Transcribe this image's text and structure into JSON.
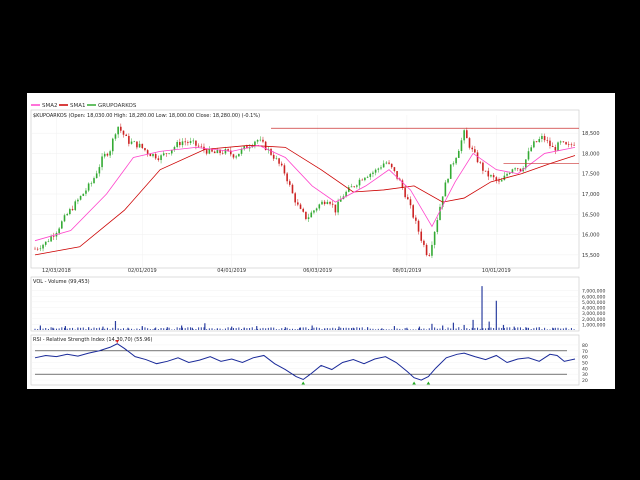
{
  "legend": {
    "items": [
      {
        "label": "SMA2",
        "color": "#ff44cc"
      },
      {
        "label": "SMA1",
        "color": "#cc0000"
      },
      {
        "label": "GRUPOARKOS",
        "color": "#33aa33"
      }
    ]
  },
  "chart_data": [
    {
      "type": "candlestick",
      "title": "$KUPOARKOS (Open: 18,030.00 High: 18,280.00 Low: 18,000.00 Close: 18,280.00) (-0.1%)",
      "x_tick_labels": [
        "12/03/2018",
        "02/01/2019",
        "04/01/2019",
        "06/03/2019",
        "08/01/2019",
        "10/01/2019"
      ],
      "y_tick_labels": [
        "18,500",
        "18,000",
        "17,500",
        "17,000",
        "16,500",
        "16,000",
        "15,500"
      ],
      "ylim": [
        15300,
        18750
      ],
      "last_price": {
        "open": 18030,
        "high": 18280,
        "low": 18000,
        "close": 18280,
        "change_pct": -0.1
      },
      "close_points": [
        [
          0,
          15650
        ],
        [
          6,
          15800
        ],
        [
          12,
          16100
        ],
        [
          18,
          16500
        ],
        [
          25,
          16900
        ],
        [
          32,
          17300
        ],
        [
          38,
          17900
        ],
        [
          42,
          18100
        ],
        [
          46,
          18700
        ],
        [
          52,
          18300
        ],
        [
          58,
          18200
        ],
        [
          64,
          18000
        ],
        [
          70,
          17900
        ],
        [
          76,
          18100
        ],
        [
          82,
          18300
        ],
        [
          88,
          18250
        ],
        [
          94,
          18100
        ],
        [
          100,
          18000
        ],
        [
          106,
          18050
        ],
        [
          112,
          17950
        ],
        [
          118,
          18150
        ],
        [
          124,
          18350
        ],
        [
          128,
          18200
        ],
        [
          134,
          17900
        ],
        [
          140,
          17500
        ],
        [
          144,
          17000
        ],
        [
          148,
          16600
        ],
        [
          152,
          16400
        ],
        [
          158,
          16700
        ],
        [
          164,
          16900
        ],
        [
          168,
          16600
        ],
        [
          172,
          16950
        ],
        [
          178,
          17200
        ],
        [
          184,
          17450
        ],
        [
          190,
          17550
        ],
        [
          196,
          17800
        ],
        [
          200,
          17600
        ],
        [
          204,
          17300
        ],
        [
          208,
          16900
        ],
        [
          212,
          16400
        ],
        [
          216,
          15900
        ],
        [
          220,
          15450
        ],
        [
          224,
          16200
        ],
        [
          228,
          17000
        ],
        [
          232,
          17600
        ],
        [
          236,
          18000
        ],
        [
          240,
          18500
        ],
        [
          244,
          18100
        ],
        [
          248,
          17800
        ],
        [
          252,
          17500
        ],
        [
          256,
          17400
        ],
        [
          260,
          17250
        ],
        [
          264,
          17500
        ],
        [
          268,
          17700
        ],
        [
          272,
          17600
        ],
        [
          278,
          18200
        ],
        [
          284,
          18400
        ],
        [
          290,
          18100
        ],
        [
          294,
          18250
        ],
        [
          298,
          18150
        ],
        [
          302,
          18280
        ]
      ],
      "sma_short_points": [
        [
          0,
          15850
        ],
        [
          20,
          16100
        ],
        [
          40,
          17000
        ],
        [
          55,
          17900
        ],
        [
          70,
          18050
        ],
        [
          90,
          18150
        ],
        [
          110,
          18050
        ],
        [
          125,
          18200
        ],
        [
          140,
          17900
        ],
        [
          155,
          17200
        ],
        [
          168,
          16800
        ],
        [
          185,
          17200
        ],
        [
          198,
          17600
        ],
        [
          210,
          17100
        ],
        [
          222,
          16200
        ],
        [
          235,
          17300
        ],
        [
          245,
          18000
        ],
        [
          258,
          17600
        ],
        [
          270,
          17500
        ],
        [
          285,
          18000
        ],
        [
          302,
          18150
        ]
      ],
      "sma_long_points": [
        [
          0,
          15500
        ],
        [
          25,
          15700
        ],
        [
          50,
          16600
        ],
        [
          70,
          17600
        ],
        [
          95,
          18100
        ],
        [
          120,
          18200
        ],
        [
          140,
          18150
        ],
        [
          160,
          17600
        ],
        [
          178,
          17050
        ],
        [
          195,
          17100
        ],
        [
          212,
          17200
        ],
        [
          228,
          16800
        ],
        [
          240,
          16900
        ],
        [
          255,
          17300
        ],
        [
          272,
          17500
        ],
        [
          288,
          17750
        ],
        [
          302,
          17950
        ]
      ],
      "resistance_level": 18620,
      "support_level": 17750
    },
    {
      "type": "bar",
      "title": "VOL - Volume (99,453)",
      "y_tick_labels": [
        "7,000,000",
        "6,000,000",
        "5,000,000",
        "4,000,000",
        "3,000,000",
        "2,000,000",
        "1,000,000"
      ],
      "ylim": [
        0,
        8000000
      ],
      "bars": [
        [
          3,
          800000
        ],
        [
          10,
          400000
        ],
        [
          17,
          700000
        ],
        [
          24,
          300000
        ],
        [
          30,
          500000
        ],
        [
          38,
          600000
        ],
        [
          45,
          1600000
        ],
        [
          52,
          400000
        ],
        [
          60,
          700000
        ],
        [
          67,
          300000
        ],
        [
          74,
          500000
        ],
        [
          82,
          800000
        ],
        [
          88,
          400000
        ],
        [
          95,
          1200000
        ],
        [
          102,
          300000
        ],
        [
          110,
          600000
        ],
        [
          117,
          400000
        ],
        [
          124,
          700000
        ],
        [
          132,
          300000
        ],
        [
          140,
          500000
        ],
        [
          148,
          400000
        ],
        [
          155,
          800000
        ],
        [
          162,
          300000
        ],
        [
          170,
          600000
        ],
        [
          178,
          400000
        ],
        [
          186,
          500000
        ],
        [
          194,
          300000
        ],
        [
          201,
          700000
        ],
        [
          208,
          400000
        ],
        [
          215,
          600000
        ],
        [
          222,
          1100000
        ],
        [
          228,
          800000
        ],
        [
          234,
          1300000
        ],
        [
          240,
          900000
        ],
        [
          245,
          1800000
        ],
        [
          250,
          7800000
        ],
        [
          254,
          1500000
        ],
        [
          258,
          5200000
        ],
        [
          262,
          900000
        ],
        [
          268,
          600000
        ],
        [
          275,
          400000
        ],
        [
          282,
          500000
        ],
        [
          290,
          300000
        ],
        [
          297,
          400000
        ]
      ]
    },
    {
      "type": "line",
      "title": "RSI - Relative Strength Index (14,30,70) (55.96)",
      "y_tick_labels": [
        "80",
        "70",
        "60",
        "50",
        "40",
        "30",
        "20"
      ],
      "ylim": [
        15,
        85
      ],
      "reference_lines": [
        30,
        70
      ],
      "points": [
        [
          0,
          58
        ],
        [
          6,
          62
        ],
        [
          12,
          60
        ],
        [
          18,
          64
        ],
        [
          24,
          61
        ],
        [
          30,
          66
        ],
        [
          36,
          70
        ],
        [
          42,
          76
        ],
        [
          46,
          82
        ],
        [
          50,
          74
        ],
        [
          56,
          60
        ],
        [
          62,
          55
        ],
        [
          68,
          48
        ],
        [
          74,
          52
        ],
        [
          80,
          58
        ],
        [
          86,
          50
        ],
        [
          92,
          54
        ],
        [
          98,
          60
        ],
        [
          104,
          52
        ],
        [
          110,
          56
        ],
        [
          116,
          50
        ],
        [
          122,
          58
        ],
        [
          128,
          62
        ],
        [
          134,
          48
        ],
        [
          140,
          38
        ],
        [
          146,
          26
        ],
        [
          150,
          21
        ],
        [
          154,
          30
        ],
        [
          160,
          45
        ],
        [
          166,
          38
        ],
        [
          172,
          50
        ],
        [
          178,
          55
        ],
        [
          184,
          48
        ],
        [
          190,
          56
        ],
        [
          196,
          60
        ],
        [
          202,
          50
        ],
        [
          208,
          35
        ],
        [
          212,
          24
        ],
        [
          216,
          20
        ],
        [
          220,
          26
        ],
        [
          224,
          40
        ],
        [
          230,
          58
        ],
        [
          236,
          64
        ],
        [
          240,
          66
        ],
        [
          246,
          60
        ],
        [
          252,
          55
        ],
        [
          258,
          62
        ],
        [
          264,
          50
        ],
        [
          270,
          56
        ],
        [
          276,
          58
        ],
        [
          282,
          52
        ],
        [
          288,
          64
        ],
        [
          292,
          62
        ],
        [
          296,
          52
        ],
        [
          302,
          56
        ]
      ]
    }
  ]
}
